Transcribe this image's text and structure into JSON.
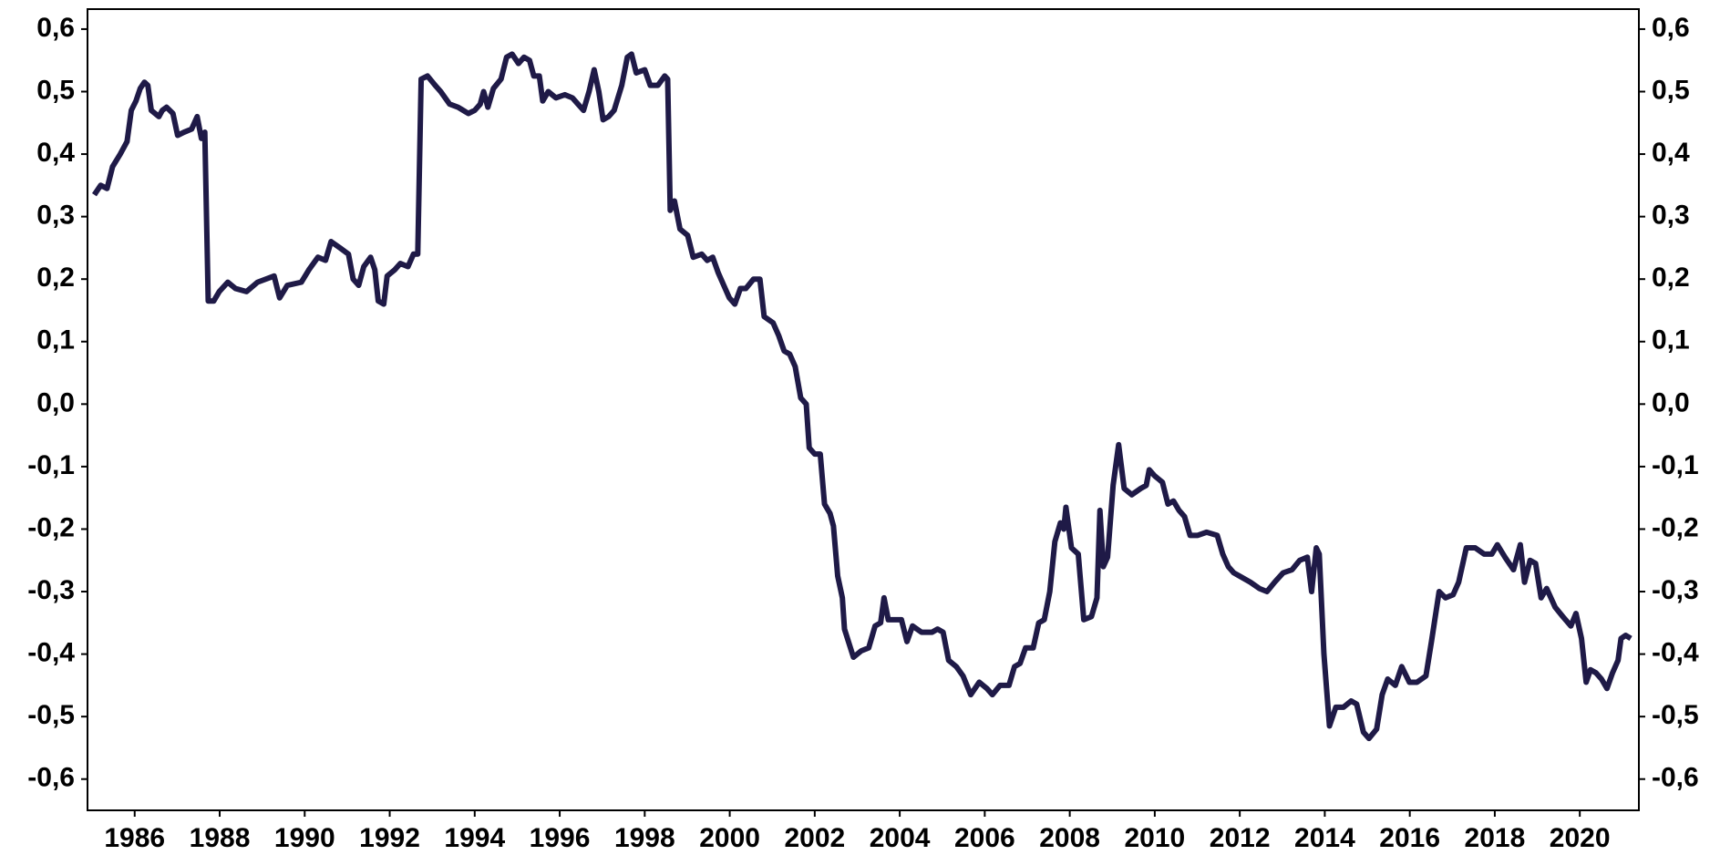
{
  "chart_data": {
    "type": "line",
    "xlim": [
      1984.89,
      2021.39
    ],
    "xticks": [
      1986,
      1988,
      1990,
      1992,
      1994,
      1996,
      1998,
      2000,
      2002,
      2004,
      2006,
      2008,
      2010,
      2012,
      2014,
      2016,
      2018,
      2020
    ],
    "ylim": [
      -0.65,
      0.632
    ],
    "yticks": [
      {
        "value": -0.6,
        "label": "-0,6"
      },
      {
        "value": -0.5,
        "label": "-0,5"
      },
      {
        "value": -0.4,
        "label": "-0,4"
      },
      {
        "value": -0.3,
        "label": "-0,3"
      },
      {
        "value": -0.2,
        "label": "-0,2"
      },
      {
        "value": -0.1,
        "label": "-0,1"
      },
      {
        "value": 0,
        "label": "0,0"
      },
      {
        "value": 0.1,
        "label": "0,1"
      },
      {
        "value": 0.2,
        "label": "0,2"
      },
      {
        "value": 0.3,
        "label": "0,3"
      },
      {
        "value": 0.4,
        "label": "0,4"
      },
      {
        "value": 0.5,
        "label": "0,5"
      },
      {
        "value": 0.6,
        "label": "0,6"
      }
    ],
    "right_axis_ticks": true,
    "grid": false,
    "series": [
      {
        "color": "#1f1a47",
        "x": [
          1985.05,
          1985.2,
          1985.35,
          1985.48,
          1985.66,
          1985.82,
          1985.92,
          1986.03,
          1986.13,
          1986.23,
          1986.31,
          1986.39,
          1986.57,
          1986.65,
          1986.75,
          1986.9,
          1987.01,
          1987.16,
          1987.34,
          1987.47,
          1987.57,
          1987.65,
          1987.73,
          1987.86,
          1987.99,
          1988.19,
          1988.37,
          1988.63,
          1988.89,
          1989.28,
          1989.41,
          1989.59,
          1989.92,
          1990.1,
          1990.31,
          1990.49,
          1990.62,
          1990.83,
          1991.03,
          1991.14,
          1991.27,
          1991.39,
          1991.55,
          1991.65,
          1991.73,
          1991.86,
          1991.94,
          1992.12,
          1992.25,
          1992.43,
          1992.56,
          1992.66,
          1992.74,
          1992.89,
          1993.07,
          1993.2,
          1993.41,
          1993.61,
          1993.85,
          1994.0,
          1994.13,
          1994.21,
          1994.31,
          1994.44,
          1994.62,
          1994.75,
          1994.88,
          1995.03,
          1995.16,
          1995.29,
          1995.39,
          1995.52,
          1995.6,
          1995.73,
          1995.91,
          1996.12,
          1996.3,
          1996.43,
          1996.56,
          1996.69,
          1996.81,
          1996.92,
          1997.02,
          1997.15,
          1997.28,
          1997.46,
          1997.59,
          1997.69,
          1997.8,
          1998.0,
          1998.13,
          1998.31,
          1998.47,
          1998.54,
          1998.6,
          1998.7,
          1998.83,
          1999.01,
          1999.14,
          1999.34,
          1999.47,
          1999.6,
          1999.73,
          1999.86,
          1999.99,
          2000.12,
          2000.25,
          2000.38,
          2000.56,
          2000.71,
          2000.81,
          2001.02,
          2001.15,
          2001.28,
          2001.41,
          2001.54,
          2001.67,
          2001.8,
          2001.87,
          2002.0,
          2002.13,
          2002.23,
          2002.36,
          2002.44,
          2002.54,
          2002.65,
          2002.7,
          2002.91,
          2003.09,
          2003.27,
          2003.42,
          2003.55,
          2003.63,
          2003.73,
          2003.91,
          2004.04,
          2004.17,
          2004.3,
          2004.51,
          2004.76,
          2004.89,
          2005.02,
          2005.15,
          2005.33,
          2005.49,
          2005.67,
          2005.87,
          2006.05,
          2006.18,
          2006.36,
          2006.57,
          2006.7,
          2006.83,
          2006.96,
          2007.14,
          2007.27,
          2007.4,
          2007.53,
          2007.65,
          2007.78,
          2007.86,
          2007.91,
          2008.04,
          2008.2,
          2008.33,
          2008.51,
          2008.64,
          2008.71,
          2008.79,
          2008.89,
          2009.02,
          2009.15,
          2009.28,
          2009.46,
          2009.67,
          2009.8,
          2009.87,
          2010.0,
          2010.18,
          2010.31,
          2010.44,
          2010.57,
          2010.7,
          2010.83,
          2011.01,
          2011.22,
          2011.47,
          2011.6,
          2011.73,
          2011.86,
          2011.99,
          2012.25,
          2012.46,
          2012.64,
          2012.82,
          2013.02,
          2013.23,
          2013.41,
          2013.59,
          2013.69,
          2013.8,
          2013.87,
          2013.98,
          2014.11,
          2014.26,
          2014.44,
          2014.62,
          2014.75,
          2014.91,
          2015.04,
          2015.22,
          2015.35,
          2015.48,
          2015.66,
          2015.81,
          2015.99,
          2016.17,
          2016.38,
          2016.51,
          2016.69,
          2016.84,
          2017.02,
          2017.15,
          2017.33,
          2017.54,
          2017.75,
          2017.93,
          2018.06,
          2018.24,
          2018.44,
          2018.6,
          2018.7,
          2018.83,
          2018.96,
          2019.09,
          2019.22,
          2019.42,
          2019.6,
          2019.79,
          2019.91,
          2020.04,
          2020.15,
          2020.25,
          2020.38,
          2020.51,
          2020.64,
          2020.77,
          2020.9,
          2020.97,
          2021.08,
          2021.2
        ],
        "values": [
          0.335,
          0.35,
          0.345,
          0.38,
          0.4,
          0.42,
          0.47,
          0.485,
          0.505,
          0.515,
          0.51,
          0.47,
          0.46,
          0.47,
          0.475,
          0.465,
          0.43,
          0.435,
          0.44,
          0.46,
          0.425,
          0.435,
          0.165,
          0.165,
          0.18,
          0.195,
          0.185,
          0.18,
          0.195,
          0.205,
          0.17,
          0.19,
          0.195,
          0.215,
          0.235,
          0.23,
          0.26,
          0.25,
          0.24,
          0.2,
          0.19,
          0.22,
          0.235,
          0.215,
          0.165,
          0.16,
          0.205,
          0.215,
          0.225,
          0.22,
          0.24,
          0.24,
          0.52,
          0.525,
          0.51,
          0.5,
          0.48,
          0.475,
          0.465,
          0.47,
          0.48,
          0.5,
          0.475,
          0.505,
          0.52,
          0.555,
          0.56,
          0.545,
          0.555,
          0.55,
          0.525,
          0.525,
          0.485,
          0.5,
          0.49,
          0.495,
          0.49,
          0.48,
          0.47,
          0.5,
          0.535,
          0.5,
          0.455,
          0.46,
          0.47,
          0.51,
          0.555,
          0.56,
          0.53,
          0.535,
          0.51,
          0.51,
          0.525,
          0.52,
          0.31,
          0.325,
          0.28,
          0.27,
          0.235,
          0.24,
          0.23,
          0.235,
          0.21,
          0.19,
          0.17,
          0.16,
          0.185,
          0.185,
          0.2,
          0.2,
          0.14,
          0.13,
          0.11,
          0.085,
          0.08,
          0.06,
          0.01,
          0.0,
          -0.07,
          -0.08,
          -0.08,
          -0.16,
          -0.175,
          -0.195,
          -0.275,
          -0.31,
          -0.36,
          -0.405,
          -0.395,
          -0.39,
          -0.355,
          -0.35,
          -0.31,
          -0.345,
          -0.345,
          -0.345,
          -0.38,
          -0.355,
          -0.365,
          -0.365,
          -0.36,
          -0.365,
          -0.41,
          -0.42,
          -0.435,
          -0.465,
          -0.445,
          -0.455,
          -0.465,
          -0.45,
          -0.45,
          -0.42,
          -0.415,
          -0.39,
          -0.39,
          -0.35,
          -0.345,
          -0.3,
          -0.22,
          -0.19,
          -0.2,
          -0.165,
          -0.23,
          -0.24,
          -0.345,
          -0.34,
          -0.31,
          -0.17,
          -0.26,
          -0.245,
          -0.13,
          -0.065,
          -0.135,
          -0.145,
          -0.135,
          -0.13,
          -0.105,
          -0.115,
          -0.125,
          -0.16,
          -0.155,
          -0.17,
          -0.18,
          -0.21,
          -0.21,
          -0.205,
          -0.21,
          -0.24,
          -0.26,
          -0.27,
          -0.275,
          -0.285,
          -0.295,
          -0.3,
          -0.285,
          -0.27,
          -0.265,
          -0.25,
          -0.245,
          -0.3,
          -0.23,
          -0.24,
          -0.4,
          -0.515,
          -0.485,
          -0.485,
          -0.475,
          -0.48,
          -0.525,
          -0.535,
          -0.52,
          -0.465,
          -0.44,
          -0.45,
          -0.42,
          -0.445,
          -0.445,
          -0.435,
          -0.38,
          -0.3,
          -0.31,
          -0.305,
          -0.285,
          -0.23,
          -0.23,
          -0.24,
          -0.24,
          -0.225,
          -0.245,
          -0.265,
          -0.225,
          -0.285,
          -0.25,
          -0.255,
          -0.31,
          -0.295,
          -0.325,
          -0.34,
          -0.355,
          -0.335,
          -0.375,
          -0.445,
          -0.425,
          -0.43,
          -0.44,
          -0.455,
          -0.43,
          -0.41,
          -0.375,
          -0.37,
          -0.375
        ]
      }
    ]
  }
}
